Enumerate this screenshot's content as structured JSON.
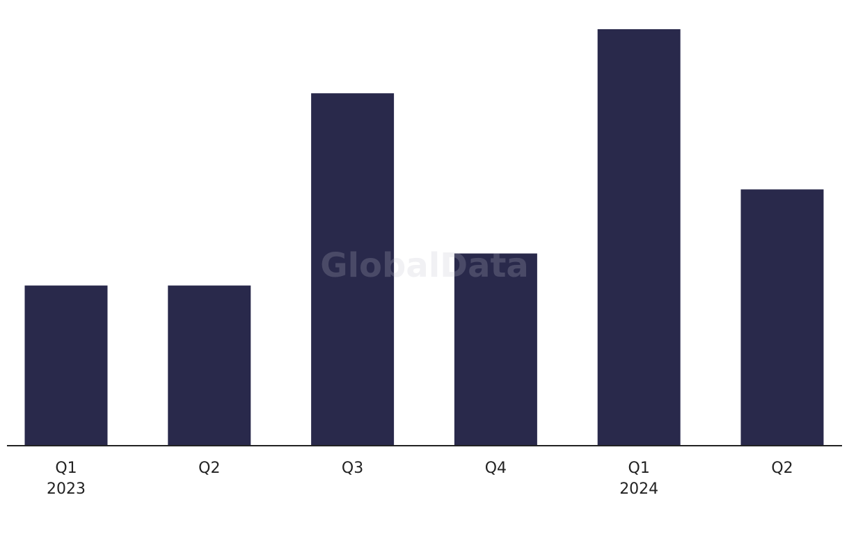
{
  "chart_data": {
    "type": "bar",
    "categories": [
      "Q1",
      "Q2",
      "Q3",
      "Q4",
      "Q1",
      "Q2"
    ],
    "group_labels": [
      "2023",
      null,
      null,
      null,
      "2024",
      null
    ],
    "values": [
      5,
      5,
      11,
      6,
      13,
      8
    ],
    "color": "#29294b",
    "ylim": [
      0,
      13
    ],
    "watermark": "GlobalData"
  }
}
